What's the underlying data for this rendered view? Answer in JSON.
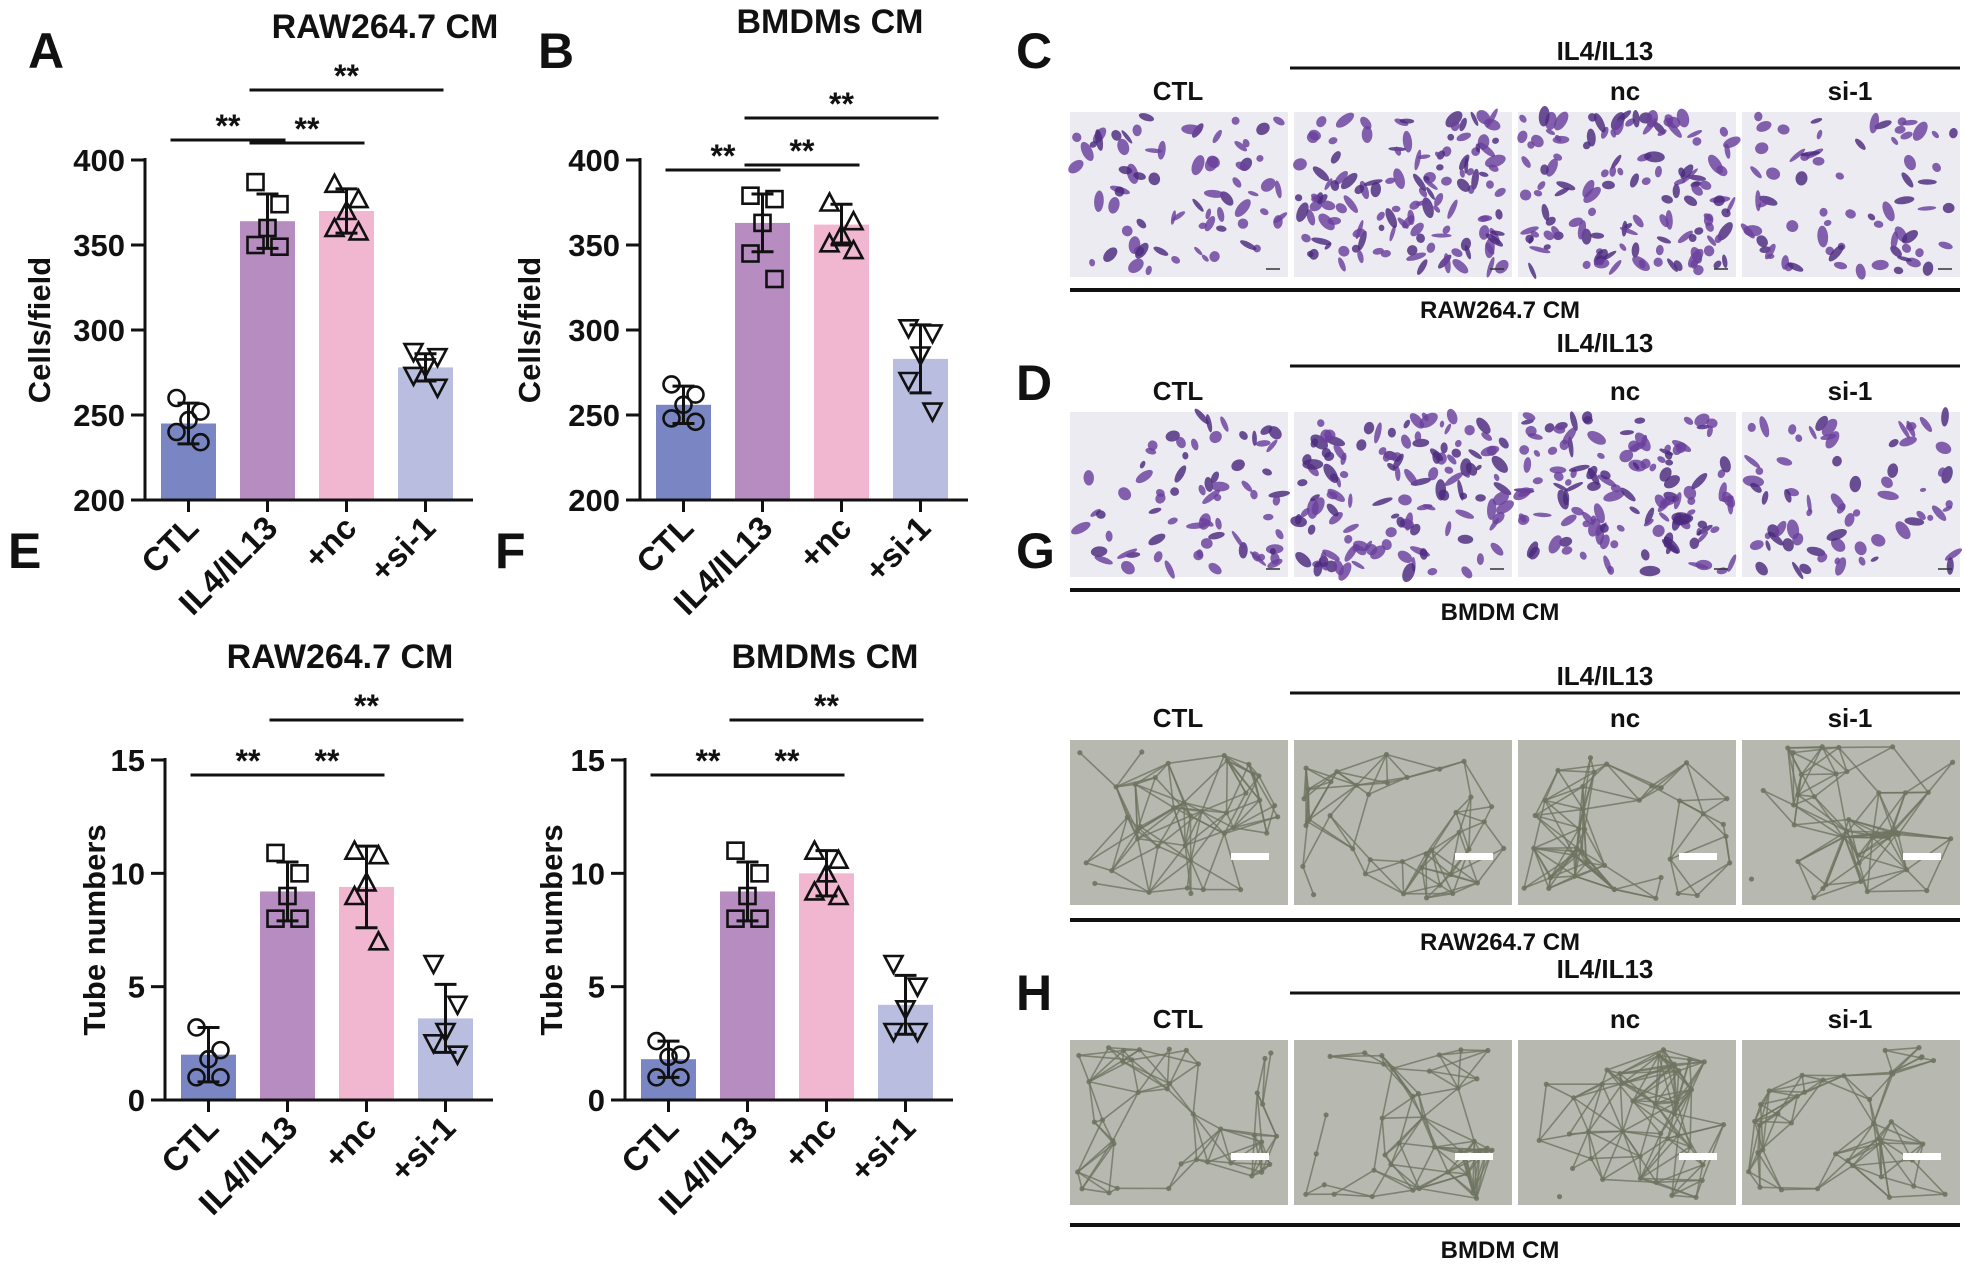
{
  "panel_letters": [
    "A",
    "B",
    "C",
    "D",
    "E",
    "F",
    "G",
    "H"
  ],
  "chart_data": [
    {
      "panel": "A",
      "type": "bar",
      "title": "RAW264.7 CM",
      "ylabel": "Cells/field",
      "categories": [
        "CTL",
        "IL4/IL13",
        "+nc",
        "+si-1"
      ],
      "values": [
        245,
        364,
        370,
        278
      ],
      "sd": [
        12,
        16,
        13,
        8
      ],
      "ylim": [
        200,
        400
      ],
      "yticks": [
        "200",
        "250",
        "300",
        "350",
        "400"
      ],
      "points": [
        [
          260,
          252,
          247,
          240,
          234
        ],
        [
          387,
          374,
          360,
          350,
          349
        ],
        [
          386,
          377,
          370,
          360,
          358
        ],
        [
          287,
          284,
          278,
          273,
          266
        ]
      ],
      "markers": [
        "circle",
        "square",
        "triangle-up",
        "triangle-down"
      ],
      "colors": [
        "#7a86c4",
        "#b78cc0",
        "#f1b6d0",
        "#b9bee0"
      ],
      "significance": [
        {
          "from": 0,
          "to": 1,
          "label": "**"
        },
        {
          "from": 1,
          "to": 2,
          "label": "**"
        },
        {
          "from": 1,
          "to": 3,
          "label": "**"
        }
      ]
    },
    {
      "panel": "B",
      "type": "bar",
      "title": "BMDMs CM",
      "ylabel": "Cells/field",
      "categories": [
        "CTL",
        "IL4/IL13",
        "+nc",
        "+si-1"
      ],
      "values": [
        256,
        363,
        362,
        283
      ],
      "sd": [
        11,
        17,
        12,
        20
      ],
      "ylim": [
        200,
        400
      ],
      "yticks": [
        "200",
        "250",
        "300",
        "350",
        "400"
      ],
      "points": [
        [
          268,
          262,
          256,
          248,
          246
        ],
        [
          379,
          377,
          363,
          345,
          330
        ],
        [
          375,
          364,
          356,
          351,
          347
        ],
        [
          301,
          298,
          285,
          270,
          252
        ]
      ],
      "markers": [
        "circle",
        "square",
        "triangle-up",
        "triangle-down"
      ],
      "colors": [
        "#7a86c4",
        "#b78cc0",
        "#f1b6d0",
        "#b9bee0"
      ],
      "significance": [
        {
          "from": 0,
          "to": 1,
          "label": "**"
        },
        {
          "from": 1,
          "to": 2,
          "label": "**"
        },
        {
          "from": 1,
          "to": 3,
          "label": "**"
        }
      ]
    },
    {
      "panel": "E",
      "type": "bar",
      "title": "RAW264.7 CM",
      "ylabel": "Tube numbers",
      "categories": [
        "CTL",
        "IL4/IL13",
        "+nc",
        "+si-1"
      ],
      "values": [
        2.0,
        9.2,
        9.4,
        3.6
      ],
      "sd": [
        1.2,
        1.3,
        1.8,
        1.5
      ],
      "ylim": [
        0,
        15
      ],
      "yticks": [
        "0",
        "5",
        "10",
        "15"
      ],
      "points": [
        [
          3.2,
          2.2,
          1.8,
          1.0,
          1.0
        ],
        [
          10.9,
          10.0,
          9.0,
          8.0,
          8.0
        ],
        [
          11.0,
          10.8,
          9.6,
          9.0,
          7.0
        ],
        [
          6.0,
          4.2,
          3.0,
          2.5,
          2.0
        ]
      ],
      "markers": [
        "circle",
        "square",
        "triangle-up",
        "triangle-down"
      ],
      "colors": [
        "#7a86c4",
        "#b78cc0",
        "#f1b6d0",
        "#b9bee0"
      ],
      "significance": [
        {
          "from": 0,
          "to": 1,
          "label": "**"
        },
        {
          "from": 1,
          "to": 2,
          "label": "**"
        },
        {
          "from": 1,
          "to": 3,
          "label": "**"
        }
      ]
    },
    {
      "panel": "F",
      "type": "bar",
      "title": "BMDMs CM",
      "ylabel": "Tube numbers",
      "categories": [
        "CTL",
        "IL4/IL13",
        "+nc",
        "+si-1"
      ],
      "values": [
        1.8,
        9.2,
        10.0,
        4.2
      ],
      "sd": [
        0.8,
        1.3,
        1.0,
        1.3
      ],
      "ylim": [
        0,
        15
      ],
      "yticks": [
        "0",
        "5",
        "10",
        "15"
      ],
      "points": [
        [
          2.6,
          2.0,
          1.9,
          1.0,
          1.0
        ],
        [
          11.0,
          10.0,
          9.0,
          8.0,
          8.0
        ],
        [
          11.0,
          10.6,
          10.0,
          9.2,
          9.0
        ],
        [
          6.0,
          5.0,
          4.0,
          3.0,
          3.0
        ]
      ],
      "markers": [
        "circle",
        "square",
        "triangle-up",
        "triangle-down"
      ],
      "colors": [
        "#7a86c4",
        "#b78cc0",
        "#f1b6d0",
        "#b9bee0"
      ],
      "significance": [
        {
          "from": 0,
          "to": 1,
          "label": "**"
        },
        {
          "from": 1,
          "to": 2,
          "label": "**"
        },
        {
          "from": 1,
          "to": 3,
          "label": "**"
        }
      ]
    }
  ],
  "image_panels": [
    {
      "panel": "C",
      "kind": "transwell",
      "group_label": "IL4/IL13",
      "column_labels": [
        "CTL",
        "nc",
        "si-1"
      ],
      "caption": "RAW264.7 CM"
    },
    {
      "panel": "D",
      "kind": "transwell",
      "group_label": "IL4/IL13",
      "column_labels": [
        "CTL",
        "nc",
        "si-1"
      ],
      "caption": "BMDM CM"
    },
    {
      "panel": "G",
      "kind": "tube",
      "group_label": "IL4/IL13",
      "column_labels": [
        "CTL",
        "nc",
        "si-1"
      ],
      "caption": "RAW264.7 CM"
    },
    {
      "panel": "H",
      "kind": "tube",
      "group_label": "IL4/IL13",
      "column_labels": [
        "CTL",
        "nc",
        "si-1"
      ],
      "caption": "BMDM CM"
    }
  ],
  "colors": {
    "transwell_background": "#ecebf2",
    "transwell_stain": "#6a3f9c",
    "transwell_stain_dark": "#4a2a7e",
    "tube_background": "#b7b9b1",
    "tube_cells": "#6f7462",
    "scale_bar": "#ffffff"
  }
}
